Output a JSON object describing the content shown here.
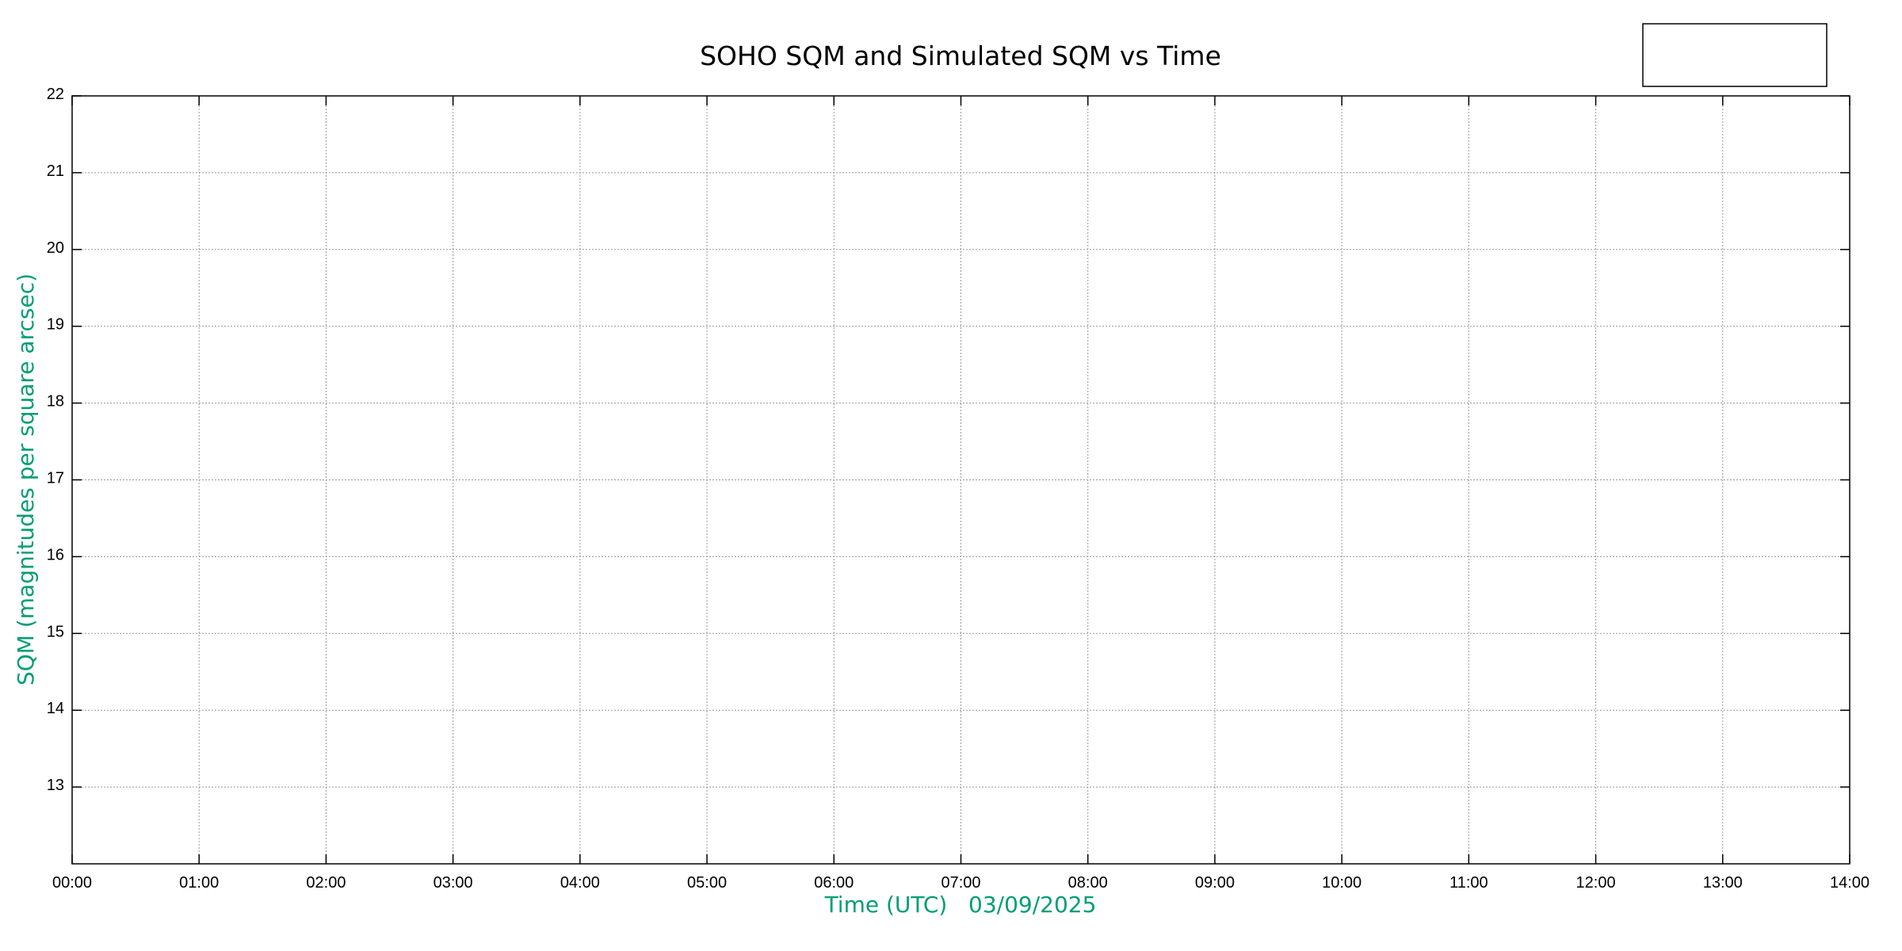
{
  "chart_data": {
    "type": "line",
    "title": "SOHO SQM and Simulated SQM vs Time",
    "xlabel": "Time (UTC)   03/09/2025",
    "ylabel": "SQM (magnitudes per square arcsec)",
    "x_ticks": [
      "00:00",
      "01:00",
      "02:00",
      "03:00",
      "04:00",
      "05:00",
      "06:00",
      "07:00",
      "08:00",
      "09:00",
      "10:00",
      "11:00",
      "12:00",
      "13:00",
      "14:00"
    ],
    "xlim_hours": [
      0,
      14
    ],
    "y_ticks": [
      13,
      14,
      15,
      16,
      17,
      18,
      19,
      20,
      21,
      22
    ],
    "ylim": [
      12,
      22
    ],
    "grid": true,
    "legend": {
      "placement": "top-right",
      "entries": []
    },
    "series": [],
    "label_color": "#009e73"
  }
}
